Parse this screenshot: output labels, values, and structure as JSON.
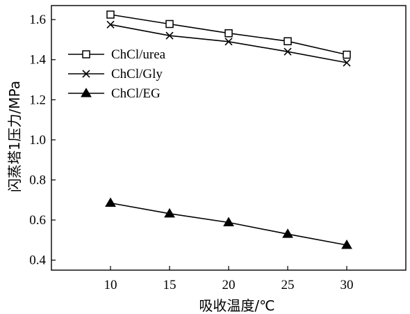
{
  "chart_data": {
    "type": "line",
    "x": [
      10,
      15,
      20,
      25,
      30
    ],
    "xlabel": "吸收温度/℃",
    "ylabel": "闪蒸塔1压力/MPa",
    "xlim": [
      5,
      35
    ],
    "ylim": [
      0.35,
      1.67
    ],
    "xticks": [
      10,
      15,
      20,
      25,
      30
    ],
    "yticks": [
      0.4,
      0.6,
      0.8,
      1.0,
      1.2,
      1.4,
      1.6
    ],
    "xtick_labels": [
      "10",
      "15",
      "20",
      "25",
      "30"
    ],
    "ytick_labels": [
      "0.4",
      "0.6",
      "0.8",
      "1.0",
      "1.2",
      "1.4",
      "1.6"
    ],
    "grid": false,
    "legend_position": "upper-left",
    "series": [
      {
        "name": "ChCl/urea",
        "marker": "open-square",
        "values": [
          1.625,
          1.578,
          1.532,
          1.492,
          1.425
        ]
      },
      {
        "name": "ChCl/Gly",
        "marker": "x",
        "values": [
          1.575,
          1.52,
          1.49,
          1.44,
          1.385
        ]
      },
      {
        "name": "ChCl/EG",
        "marker": "filled-triangle",
        "values": [
          0.685,
          0.632,
          0.588,
          0.53,
          0.475
        ]
      }
    ]
  }
}
